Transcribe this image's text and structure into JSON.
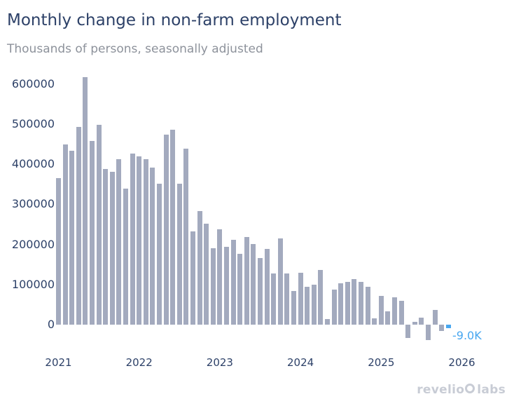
{
  "header": {
    "title": "Monthly change in non-farm employment",
    "subtitle": "Thousands of persons, seasonally adjusted"
  },
  "logo": {
    "revelio": "revelio",
    "labs": "labs"
  },
  "colors": {
    "background": "#ffffff",
    "bar": "#a3aabe",
    "highlight_bar": "#48a7f0",
    "title_text": "#2d4168",
    "subtitle_text": "#8d929b",
    "axis_text": "#2d4168",
    "annotation_text": "#48a7f0",
    "logo_text": "#c8ccd5"
  },
  "chart_data": {
    "type": "bar",
    "title": "Monthly change in non-farm employment",
    "subtitle": "Thousands of persons, seasonally adjusted",
    "xlabel": "",
    "ylabel": "",
    "grid": false,
    "legend": false,
    "ylim": [
      -60000,
      640000
    ],
    "y_ticks": [
      0,
      100000,
      200000,
      300000,
      400000,
      500000,
      600000
    ],
    "y_tick_labels": [
      "0",
      "100000",
      "200000",
      "300000",
      "400000",
      "500000",
      "600000"
    ],
    "x_tick_month_offsets": [
      0,
      12,
      24,
      36,
      48,
      60
    ],
    "x_tick_labels": [
      "2021",
      "2022",
      "2023",
      "2024",
      "2025",
      "2026"
    ],
    "highlight_index": 58,
    "annotation": {
      "text": "-9.0K",
      "month": "2025-11",
      "value": -9000
    },
    "series": [
      {
        "name": "Monthly change in non-farm employment",
        "x": [
          "2021-01",
          "2021-02",
          "2021-03",
          "2021-04",
          "2021-05",
          "2021-06",
          "2021-07",
          "2021-08",
          "2021-09",
          "2021-10",
          "2021-11",
          "2021-12",
          "2022-01",
          "2022-02",
          "2022-03",
          "2022-04",
          "2022-05",
          "2022-06",
          "2022-07",
          "2022-08",
          "2022-09",
          "2022-10",
          "2022-11",
          "2022-12",
          "2023-01",
          "2023-02",
          "2023-03",
          "2023-04",
          "2023-05",
          "2023-06",
          "2023-07",
          "2023-08",
          "2023-09",
          "2023-10",
          "2023-11",
          "2023-12",
          "2024-01",
          "2024-02",
          "2024-03",
          "2024-04",
          "2024-05",
          "2024-06",
          "2024-07",
          "2024-08",
          "2024-09",
          "2024-10",
          "2024-11",
          "2024-12",
          "2025-01",
          "2025-02",
          "2025-03",
          "2025-04",
          "2025-05",
          "2025-06",
          "2025-07",
          "2025-08",
          "2025-09",
          "2025-10",
          "2025-11"
        ],
        "values": [
          366000,
          449000,
          433000,
          493000,
          617000,
          458000,
          499000,
          388000,
          381000,
          412000,
          340000,
          426000,
          420000,
          412000,
          391000,
          352000,
          474000,
          486000,
          352000,
          439000,
          233000,
          283000,
          251000,
          190000,
          238000,
          194000,
          211000,
          177000,
          219000,
          201000,
          166000,
          188000,
          127000,
          215000,
          127000,
          84000,
          129000,
          94000,
          99000,
          137000,
          14000,
          87000,
          103000,
          107000,
          113000,
          106000,
          94000,
          16000,
          71000,
          33000,
          69000,
          59000,
          -34000,
          7000,
          18000,
          -39000,
          36000,
          -16000,
          -9000
        ]
      }
    ]
  }
}
